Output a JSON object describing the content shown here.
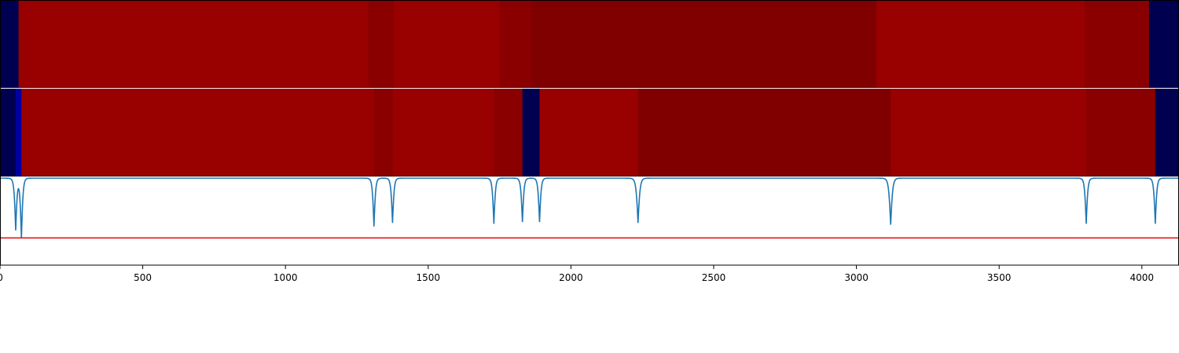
{
  "chart_data": [
    {
      "type": "heatmap",
      "xlim": [
        0,
        4130
      ],
      "segments": [
        {
          "start": 0,
          "end": 65,
          "color": "#000050"
        },
        {
          "start": 65,
          "end": 1290,
          "color": "#990000"
        },
        {
          "start": 1290,
          "end": 1380,
          "color": "#8a0000"
        },
        {
          "start": 1380,
          "end": 1750,
          "color": "#990000"
        },
        {
          "start": 1750,
          "end": 1860,
          "color": "#8a0000"
        },
        {
          "start": 1860,
          "end": 3070,
          "color": "#800000"
        },
        {
          "start": 3070,
          "end": 3800,
          "color": "#990000"
        },
        {
          "start": 3800,
          "end": 4025,
          "color": "#8a0000"
        },
        {
          "start": 4025,
          "end": 4130,
          "color": "#000050"
        }
      ]
    },
    {
      "type": "heatmap",
      "xlim": [
        0,
        4130
      ],
      "segments": [
        {
          "start": 0,
          "end": 55,
          "color": "#000050"
        },
        {
          "start": 55,
          "end": 75,
          "color": "#0000a0"
        },
        {
          "start": 75,
          "end": 1310,
          "color": "#990000"
        },
        {
          "start": 1310,
          "end": 1375,
          "color": "#8a0000"
        },
        {
          "start": 1375,
          "end": 1730,
          "color": "#990000"
        },
        {
          "start": 1730,
          "end": 1830,
          "color": "#8a0000"
        },
        {
          "start": 1830,
          "end": 1890,
          "color": "#000050"
        },
        {
          "start": 1890,
          "end": 2235,
          "color": "#990000"
        },
        {
          "start": 2235,
          "end": 3120,
          "color": "#800000"
        },
        {
          "start": 3120,
          "end": 3805,
          "color": "#990000"
        },
        {
          "start": 3805,
          "end": 4047,
          "color": "#8a0000"
        },
        {
          "start": 4047,
          "end": 4130,
          "color": "#000050"
        }
      ]
    },
    {
      "type": "line",
      "xlim": [
        0,
        4130
      ],
      "ylim": [
        0,
        1
      ],
      "baseline": 0.99,
      "threshold": 0.31,
      "line_color": "#1f77b4",
      "threshold_color": "#e41a1c",
      "dips": [
        {
          "x": 55,
          "depth": 0.59,
          "width": 5
        },
        {
          "x": 75,
          "depth": 0.68,
          "width": 5
        },
        {
          "x": 1310,
          "depth": 0.55,
          "width": 5
        },
        {
          "x": 1375,
          "depth": 0.51,
          "width": 5
        },
        {
          "x": 1730,
          "depth": 0.52,
          "width": 5
        },
        {
          "x": 1830,
          "depth": 0.5,
          "width": 5
        },
        {
          "x": 1890,
          "depth": 0.5,
          "width": 5
        },
        {
          "x": 2235,
          "depth": 0.51,
          "width": 6
        },
        {
          "x": 3120,
          "depth": 0.53,
          "width": 6
        },
        {
          "x": 3805,
          "depth": 0.52,
          "width": 5
        },
        {
          "x": 4047,
          "depth": 0.52,
          "width": 5
        }
      ],
      "xticks": [
        0,
        500,
        1000,
        1500,
        2000,
        2500,
        3000,
        3500,
        4000
      ],
      "xtick_labels": [
        "0",
        "500",
        "1000",
        "1500",
        "2000",
        "2500",
        "3000",
        "3500",
        "4000"
      ]
    }
  ]
}
